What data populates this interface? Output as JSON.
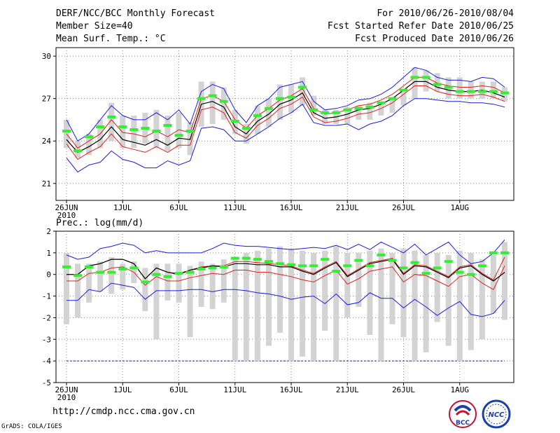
{
  "header": {
    "title": "DERF/NCC/BCC Monthly Forecast",
    "member": "Member Size=40",
    "variable": "Mean Surf. Temp.: °C",
    "period": "For 2010/06/26-2010/08/04",
    "started": "Fcst Started Refer Date 2010/06/25",
    "produced": "Fcst Produced Date 2010/06/26"
  },
  "precip_label": "Prec.: log(mm/d)",
  "url": "http://cmdp.ncc.cma.gov.cn",
  "grads": "GrADS: COLA/IGES",
  "logos": {
    "left": "BCC",
    "right": "NCC"
  },
  "colors": {
    "bar": "#d3d3d3",
    "green": "#33ee33",
    "black": "#000000",
    "red": "#dd2222",
    "blue": "#1c1cdd",
    "dash": "#1c1ccc"
  },
  "x_ticks": [
    {
      "day": 1,
      "label": "26JUN",
      "label2": "2010"
    },
    {
      "day": 6,
      "label": "1JUL"
    },
    {
      "day": 11,
      "label": "6JUL"
    },
    {
      "day": 16,
      "label": "11JUL"
    },
    {
      "day": 21,
      "label": "16JUL"
    },
    {
      "day": 26,
      "label": "21JUL"
    },
    {
      "day": 31,
      "label": "26JUL"
    },
    {
      "day": 36,
      "label": "1AUG"
    }
  ],
  "chart_data": [
    {
      "type": "box-line",
      "name": "temperature",
      "ylabel": "Mean Surf. Temp.: °C",
      "ylim": [
        19.8,
        30.6
      ],
      "yticks": [
        21,
        24,
        27,
        30
      ],
      "days": 40,
      "series": {
        "bar_max": [
          25.5,
          24.0,
          24.5,
          25.5,
          26.7,
          25.8,
          25.8,
          26.0,
          26.2,
          25.8,
          26.0,
          25.3,
          28.2,
          28.2,
          27.8,
          26.2,
          25.2,
          26.5,
          27.0,
          28.0,
          28.0,
          28.5,
          27.2,
          26.2,
          26.2,
          26.4,
          26.5,
          26.7,
          26.8,
          27.0,
          27.5,
          29.2,
          29.0,
          28.8,
          28.5,
          28.5,
          28.2,
          28.2,
          28.2,
          27.8
        ],
        "bar_min": [
          23.5,
          22.8,
          23.0,
          23.5,
          24.0,
          23.5,
          23.5,
          23.8,
          23.5,
          23.3,
          23.5,
          23.0,
          25.0,
          25.2,
          25.5,
          24.5,
          23.8,
          24.5,
          25.0,
          25.5,
          26.0,
          26.5,
          25.8,
          25.2,
          25.2,
          25.2,
          25.5,
          25.5,
          25.8,
          26.0,
          26.5,
          27.0,
          27.5,
          27.5,
          27.0,
          27.0,
          27.0,
          27.0,
          27.0,
          26.8
        ],
        "green": [
          24.7,
          23.3,
          24.3,
          25.0,
          25.7,
          25.0,
          24.8,
          24.9,
          24.7,
          25.1,
          24.4,
          24.7,
          27.0,
          27.2,
          26.8,
          25.4,
          24.9,
          25.8,
          26.3,
          27.0,
          27.1,
          27.8,
          26.2,
          26.0,
          26.0,
          26.2,
          26.3,
          26.4,
          26.7,
          27.0,
          27.6,
          28.5,
          28.5,
          28.0,
          27.8,
          27.5,
          27.5,
          27.5,
          27.5,
          27.4
        ],
        "max": [
          25.5,
          24.0,
          24.5,
          25.5,
          26.5,
          25.8,
          25.5,
          25.5,
          26.0,
          25.5,
          26.2,
          25.2,
          27.5,
          28.0,
          27.7,
          26.2,
          25.3,
          26.5,
          27.0,
          27.8,
          28.0,
          28.2,
          26.8,
          26.2,
          26.3,
          26.5,
          26.9,
          27.0,
          27.3,
          27.8,
          28.5,
          29.2,
          29.0,
          28.5,
          28.3,
          28.3,
          28.2,
          28.5,
          28.4,
          27.8
        ],
        "upper": [
          24.5,
          23.5,
          24.0,
          24.5,
          25.5,
          24.6,
          24.5,
          24.3,
          24.7,
          24.3,
          24.8,
          24.6,
          27.0,
          27.2,
          26.8,
          25.5,
          24.9,
          25.8,
          26.3,
          26.9,
          27.2,
          27.7,
          26.3,
          25.9,
          26.0,
          26.2,
          26.5,
          26.6,
          26.9,
          27.3,
          27.9,
          28.5,
          28.5,
          28.1,
          27.9,
          27.8,
          27.8,
          27.9,
          27.8,
          27.4
        ],
        "mean": [
          24.1,
          23.2,
          23.6,
          24.1,
          25.0,
          24.1,
          23.9,
          23.7,
          24.1,
          23.7,
          24.2,
          24.1,
          26.6,
          26.8,
          26.4,
          25.0,
          24.5,
          25.4,
          25.9,
          26.6,
          26.9,
          27.4,
          26.0,
          25.6,
          25.7,
          25.9,
          26.2,
          26.3,
          26.6,
          27.0,
          27.6,
          28.2,
          28.2,
          27.8,
          27.6,
          27.5,
          27.5,
          27.6,
          27.4,
          27.1
        ],
        "lower": [
          23.8,
          22.7,
          23.2,
          23.6,
          24.5,
          23.6,
          23.4,
          23.2,
          23.6,
          23.2,
          23.7,
          23.7,
          26.2,
          26.4,
          26.0,
          24.6,
          24.2,
          25.1,
          25.6,
          26.3,
          26.6,
          27.1,
          25.7,
          25.3,
          25.4,
          25.6,
          25.9,
          26.0,
          26.3,
          26.7,
          27.3,
          27.9,
          27.9,
          27.5,
          27.3,
          27.2,
          27.2,
          27.3,
          27.1,
          26.8
        ],
        "min": [
          22.8,
          21.8,
          22.3,
          22.5,
          23.3,
          22.7,
          22.5,
          22.1,
          22.1,
          22.6,
          22.3,
          22.6,
          24.9,
          25.0,
          24.8,
          24.0,
          24.0,
          24.5,
          25.0,
          25.6,
          26.0,
          26.6,
          25.3,
          25.1,
          25.1,
          25.2,
          24.8,
          25.2,
          25.4,
          25.8,
          26.5,
          27.0,
          27.0,
          26.9,
          26.8,
          26.8,
          26.7,
          26.7,
          26.6,
          26.4
        ]
      }
    },
    {
      "type": "box-line",
      "name": "precipitation",
      "ylabel": "Prec.: log(mm/d)",
      "ylim": [
        -5,
        2
      ],
      "yticks": [
        -5,
        -4,
        -3,
        -2,
        -1,
        0,
        1,
        2
      ],
      "days": 40,
      "dashed_level": -4,
      "series": {
        "bar_max": [
          1.0,
          0.5,
          0.5,
          0.6,
          0.8,
          0.5,
          0.6,
          0.3,
          0.5,
          0.5,
          0.5,
          0.4,
          0.6,
          0.5,
          0.7,
          0.8,
          1.0,
          1.1,
          1.2,
          1.3,
          1.2,
          1.1,
          1.0,
          1.1,
          1.3,
          1.0,
          1.0,
          1.1,
          1.2,
          1.0,
          1.2,
          1.1,
          0.9,
          1.0,
          0.9,
          1.1,
          1.0,
          0.7,
          0.9,
          1.5
        ],
        "bar_min": [
          -2.3,
          -2.0,
          -1.3,
          -0.8,
          -0.9,
          -0.7,
          -0.4,
          -1.7,
          -3.0,
          -1.2,
          -1.3,
          -2.9,
          -1.5,
          -1.6,
          -1.3,
          -4.0,
          -4.0,
          -4.0,
          -3.3,
          -2.7,
          -4.0,
          -3.8,
          -4.0,
          -2.6,
          -4.0,
          -2.0,
          -1.5,
          -2.8,
          -4.0,
          -2.3,
          -2.9,
          -4.0,
          -3.6,
          -2.2,
          -3.3,
          -4.0,
          -3.5,
          -3.0,
          -1.8,
          -2.1
        ],
        "green": [
          0.35,
          -0.05,
          0.35,
          0.1,
          0.1,
          0.25,
          0.3,
          -0.35,
          0.0,
          -0.1,
          0.05,
          0.1,
          0.25,
          0.3,
          0.35,
          0.75,
          0.75,
          0.7,
          0.6,
          0.5,
          0.45,
          0.4,
          0.4,
          0.7,
          0.15,
          0.4,
          0.65,
          0.4,
          0.9,
          0.65,
          0.3,
          0.55,
          0.05,
          0.3,
          0.6,
          0.1,
          0.0,
          0.4,
          1.0,
          1.0
        ],
        "max": [
          0.9,
          0.7,
          0.8,
          1.2,
          1.3,
          1.45,
          1.35,
          1.0,
          1.1,
          1.0,
          1.0,
          1.0,
          1.0,
          1.2,
          1.45,
          1.35,
          1.3,
          1.3,
          1.25,
          1.2,
          1.15,
          1.2,
          1.25,
          1.2,
          1.35,
          1.15,
          1.4,
          1.15,
          1.5,
          1.25,
          1.0,
          1.4,
          0.9,
          1.2,
          1.5,
          0.9,
          0.5,
          0.6,
          1.0,
          1.6
        ],
        "mean": [
          0.0,
          0.0,
          0.4,
          0.5,
          0.7,
          0.7,
          0.5,
          -0.2,
          0.3,
          0.1,
          0.0,
          0.2,
          0.3,
          0.4,
          0.35,
          0.5,
          0.5,
          0.45,
          0.45,
          0.35,
          0.35,
          0.15,
          0.0,
          0.3,
          0.55,
          -0.1,
          0.2,
          0.5,
          0.6,
          0.7,
          0.0,
          0.4,
          0.35,
          0.1,
          -0.15,
          0.3,
          0.4,
          0.0,
          -0.3,
          0.1
        ],
        "upper": [
          0.0,
          0.0,
          0.4,
          0.5,
          0.7,
          0.7,
          0.5,
          -0.2,
          0.3,
          0.1,
          0.05,
          0.2,
          0.35,
          0.4,
          0.4,
          0.6,
          0.6,
          0.55,
          0.5,
          0.45,
          0.4,
          0.2,
          0.05,
          0.35,
          0.6,
          -0.05,
          0.25,
          0.55,
          0.65,
          0.75,
          0.05,
          0.45,
          0.4,
          0.15,
          -0.1,
          0.35,
          0.45,
          0.05,
          -0.25,
          0.8
        ],
        "lower": [
          -0.3,
          -0.3,
          0.05,
          0.1,
          0.3,
          0.35,
          0.1,
          -0.5,
          -0.1,
          -0.3,
          -0.3,
          -0.15,
          -0.05,
          0.05,
          0.0,
          0.2,
          0.2,
          0.1,
          0.1,
          0.0,
          -0.1,
          -0.25,
          -0.35,
          -0.05,
          0.2,
          -0.45,
          -0.2,
          0.15,
          0.25,
          0.35,
          -0.35,
          0.0,
          -0.05,
          -0.3,
          -0.55,
          -0.1,
          0.0,
          -0.4,
          -0.7,
          0.4
        ],
        "min": [
          -1.2,
          -1.2,
          -0.7,
          -0.8,
          -0.4,
          -0.5,
          -0.6,
          -1.15,
          -0.75,
          -0.75,
          -0.75,
          -0.7,
          -0.7,
          -0.8,
          -0.7,
          -0.7,
          -0.75,
          -0.85,
          -0.9,
          -1.0,
          -1.15,
          -1.05,
          -1.0,
          -1.35,
          -0.9,
          -1.4,
          -1.3,
          -0.85,
          -1.1,
          -1.1,
          -1.55,
          -1.15,
          -1.5,
          -1.9,
          -1.55,
          -1.25,
          -1.85,
          -1.95,
          -1.8,
          -1.2
        ]
      }
    }
  ]
}
